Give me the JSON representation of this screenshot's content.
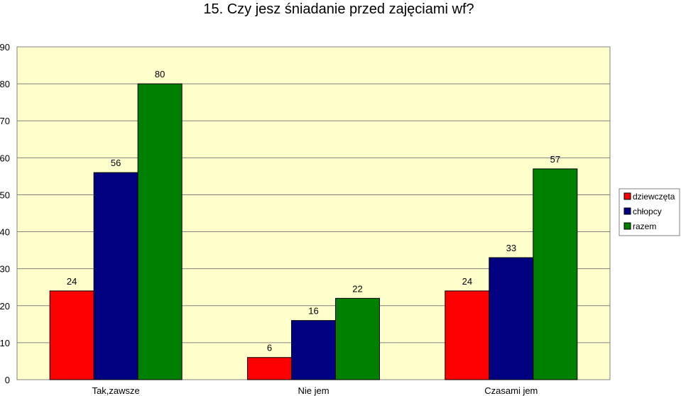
{
  "chart_data": {
    "type": "bar",
    "title": "15. Czy jesz śniadanie przed zajęciami wf?",
    "categories": [
      "Tak,zawsze",
      "Nie jem",
      "Czasami jem"
    ],
    "series": [
      {
        "name": "dziewczęta",
        "values": [
          24,
          6,
          24
        ],
        "color": "#ff0000"
      },
      {
        "name": "chłopcy",
        "values": [
          56,
          16,
          33
        ],
        "color": "#000080"
      },
      {
        "name": "razem",
        "values": [
          80,
          22,
          57
        ],
        "color": "#008000"
      }
    ],
    "ylim": [
      0,
      90
    ],
    "yticks": [
      "0",
      "10",
      "20",
      "30",
      "40",
      "50",
      "60",
      "70",
      "80",
      "90"
    ],
    "grid": true,
    "plot_background": "#ffffcc",
    "legend_position": "right"
  }
}
